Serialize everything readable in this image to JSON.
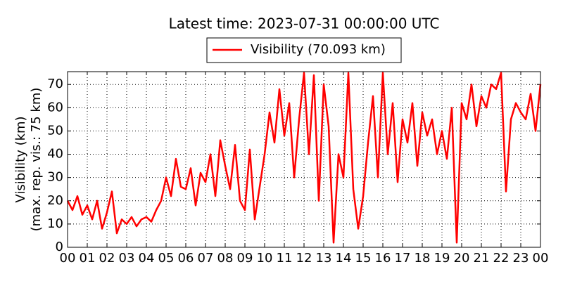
{
  "chart_data": {
    "type": "line",
    "title": "Latest time: 2023-07-31 00:00:00 UTC",
    "y_label": [
      "Visibility (km)",
      "(max. rep. vis.: 75 km)"
    ],
    "legend": "top",
    "grid": true,
    "xlim": [
      0,
      24
    ],
    "xticks": [
      {
        "value": 0,
        "label": "00"
      },
      {
        "value": 1,
        "label": "01"
      },
      {
        "value": 2,
        "label": "02"
      },
      {
        "value": 3,
        "label": "03"
      },
      {
        "value": 4,
        "label": "04"
      },
      {
        "value": 5,
        "label": "05"
      },
      {
        "value": 6,
        "label": "06"
      },
      {
        "value": 7,
        "label": "07"
      },
      {
        "value": 8,
        "label": "08"
      },
      {
        "value": 9,
        "label": "09"
      },
      {
        "value": 10,
        "label": "10"
      },
      {
        "value": 11,
        "label": "11"
      },
      {
        "value": 12,
        "label": "12"
      },
      {
        "value": 13,
        "label": "13"
      },
      {
        "value": 14,
        "label": "14"
      },
      {
        "value": 15,
        "label": "15"
      },
      {
        "value": 16,
        "label": "16"
      },
      {
        "value": 17,
        "label": "17"
      },
      {
        "value": 18,
        "label": "18"
      },
      {
        "value": 19,
        "label": "19"
      },
      {
        "value": 20,
        "label": "20"
      },
      {
        "value": 21,
        "label": "21"
      },
      {
        "value": 22,
        "label": "22"
      },
      {
        "value": 23,
        "label": "23"
      },
      {
        "value": 24,
        "label": "00"
      }
    ],
    "ylim": [
      0,
      75.5
    ],
    "yticks": [
      0,
      10,
      20,
      30,
      40,
      50,
      60,
      70
    ],
    "x": [
      0,
      0.25,
      0.5,
      0.75,
      1,
      1.25,
      1.5,
      1.75,
      2,
      2.25,
      2.5,
      2.75,
      3,
      3.25,
      3.5,
      3.75,
      4,
      4.25,
      4.5,
      4.75,
      5,
      5.25,
      5.5,
      5.75,
      6,
      6.25,
      6.5,
      6.75,
      7,
      7.25,
      7.5,
      7.75,
      8,
      8.25,
      8.5,
      8.75,
      9,
      9.25,
      9.5,
      9.75,
      10,
      10.25,
      10.5,
      10.75,
      11,
      11.25,
      11.5,
      11.75,
      12,
      12.25,
      12.5,
      12.75,
      13,
      13.25,
      13.5,
      13.75,
      14,
      14.25,
      14.5,
      14.75,
      15,
      15.25,
      15.5,
      15.75,
      16,
      16.25,
      16.5,
      16.75,
      17,
      17.25,
      17.5,
      17.75,
      18,
      18.25,
      18.5,
      18.75,
      19,
      19.25,
      19.5,
      19.75,
      20,
      20.25,
      20.5,
      20.75,
      21,
      21.25,
      21.5,
      21.75,
      22,
      22.25,
      22.5,
      22.75,
      23,
      23.25,
      23.5,
      23.75,
      24
    ],
    "series": [
      {
        "name": "Visibility (70.093 km)",
        "color": "#ff0000",
        "values": [
          20,
          16,
          22,
          14,
          18,
          12,
          20,
          8,
          15,
          24,
          6,
          12,
          10,
          13,
          9,
          12,
          13,
          11,
          16,
          20,
          30,
          22,
          38,
          26,
          25,
          34,
          18,
          32,
          28,
          40,
          22,
          46,
          35,
          25,
          44,
          20,
          16,
          42,
          12,
          26,
          40,
          58,
          45,
          68,
          48,
          62,
          30,
          55,
          75,
          40,
          74,
          20,
          70,
          52,
          2,
          40,
          30,
          75,
          25,
          8,
          22,
          45,
          65,
          30,
          75,
          40,
          62,
          28,
          55,
          45,
          62,
          35,
          58,
          48,
          55,
          40,
          50,
          38,
          60,
          2,
          62,
          55,
          70,
          52,
          65,
          60,
          70,
          68,
          75,
          24,
          55,
          62,
          58,
          55,
          66,
          50,
          70.093
        ]
      }
    ]
  }
}
